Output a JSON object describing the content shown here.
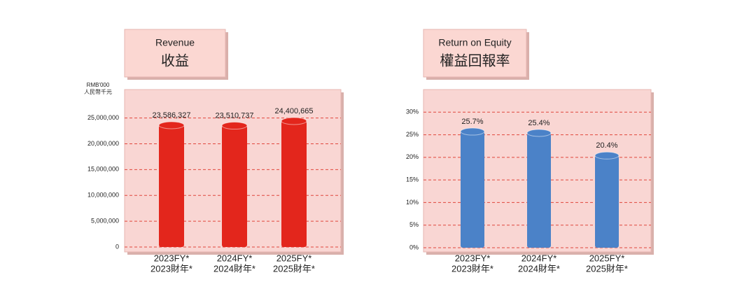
{
  "chart_data": [
    {
      "type": "bar",
      "title": "Revenue",
      "subtitle": "收益",
      "y_label": [
        "RMB'000",
        "人民幣千元"
      ],
      "categories": [
        [
          "2023FY*",
          "2023財年*"
        ],
        [
          "2024FY*",
          "2024財年*"
        ],
        [
          "2025FY*",
          "2025財年*"
        ]
      ],
      "values": [
        23586327,
        23510737,
        24400665
      ],
      "value_labels": [
        "23,586,327",
        "23,510,737",
        "24,400,665"
      ],
      "color": "#e3261c",
      "ylim": [
        0,
        30500000
      ],
      "yticks": [
        0,
        {
          "value": 5000000,
          "label": "5,000,000"
        },
        {
          "value": 10000000,
          "label": "10,000,000"
        },
        {
          "value": 15000000,
          "label": "15,000,000"
        },
        {
          "value": 20000000,
          "label": "20,000,000"
        },
        {
          "value": 25000000,
          "label": "25,000,000"
        }
      ],
      "grid": true
    },
    {
      "type": "bar",
      "title": "Return on Equity",
      "subtitle": "權益回報率",
      "categories": [
        [
          "2023FY*",
          "2023財年*"
        ],
        [
          "2024FY*",
          "2024財年*"
        ],
        [
          "2025FY*",
          "2025財年*"
        ]
      ],
      "values": [
        25.7,
        25.4,
        20.4
      ],
      "value_labels": [
        "25.7%",
        "25.4%",
        "20.4%"
      ],
      "color": "#4b82c8",
      "ylim": [
        0,
        35
      ],
      "yticks": [
        {
          "value": 0,
          "label": "0%"
        },
        {
          "value": 5,
          "label": "5%"
        },
        {
          "value": 10,
          "label": "10%"
        },
        {
          "value": 15,
          "label": "15%"
        },
        {
          "value": 20,
          "label": "20%"
        },
        {
          "value": 25,
          "label": "25%"
        },
        {
          "value": 30,
          "label": "30%"
        }
      ],
      "grid": true
    }
  ]
}
